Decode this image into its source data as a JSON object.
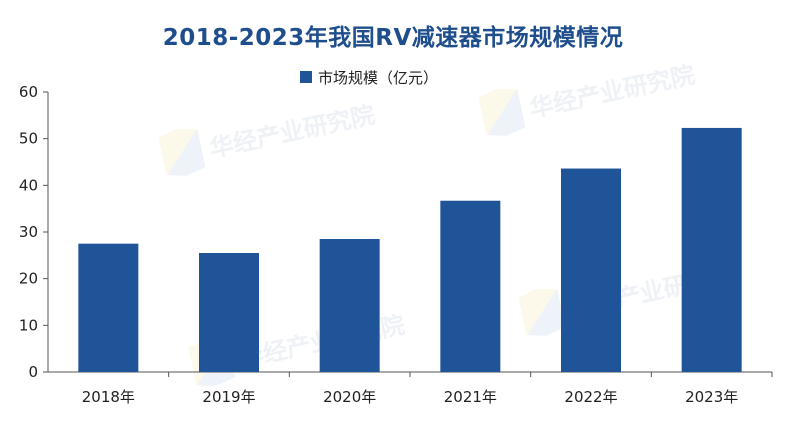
{
  "watermark_text": "华经产业研究院",
  "colors": {
    "bar": "#1f5598",
    "title": "#1f4e8c",
    "axis": "#555555"
  },
  "chart_data": {
    "type": "bar",
    "title": "2018-2023年我国RV减速器市场规模情况",
    "categories": [
      "2018年",
      "2019年",
      "2020年",
      "2021年",
      "2022年",
      "2023年"
    ],
    "series": [
      {
        "name": "市场规模（亿元）",
        "values": [
          27.5,
          25.5,
          28.5,
          36.7,
          43.6,
          52.3
        ]
      }
    ],
    "xlabel": "",
    "ylabel": "",
    "ylim": [
      0,
      60
    ],
    "yticks": [
      0,
      10,
      20,
      30,
      40,
      50,
      60
    ],
    "grid": false,
    "legend_position": "top-center"
  }
}
